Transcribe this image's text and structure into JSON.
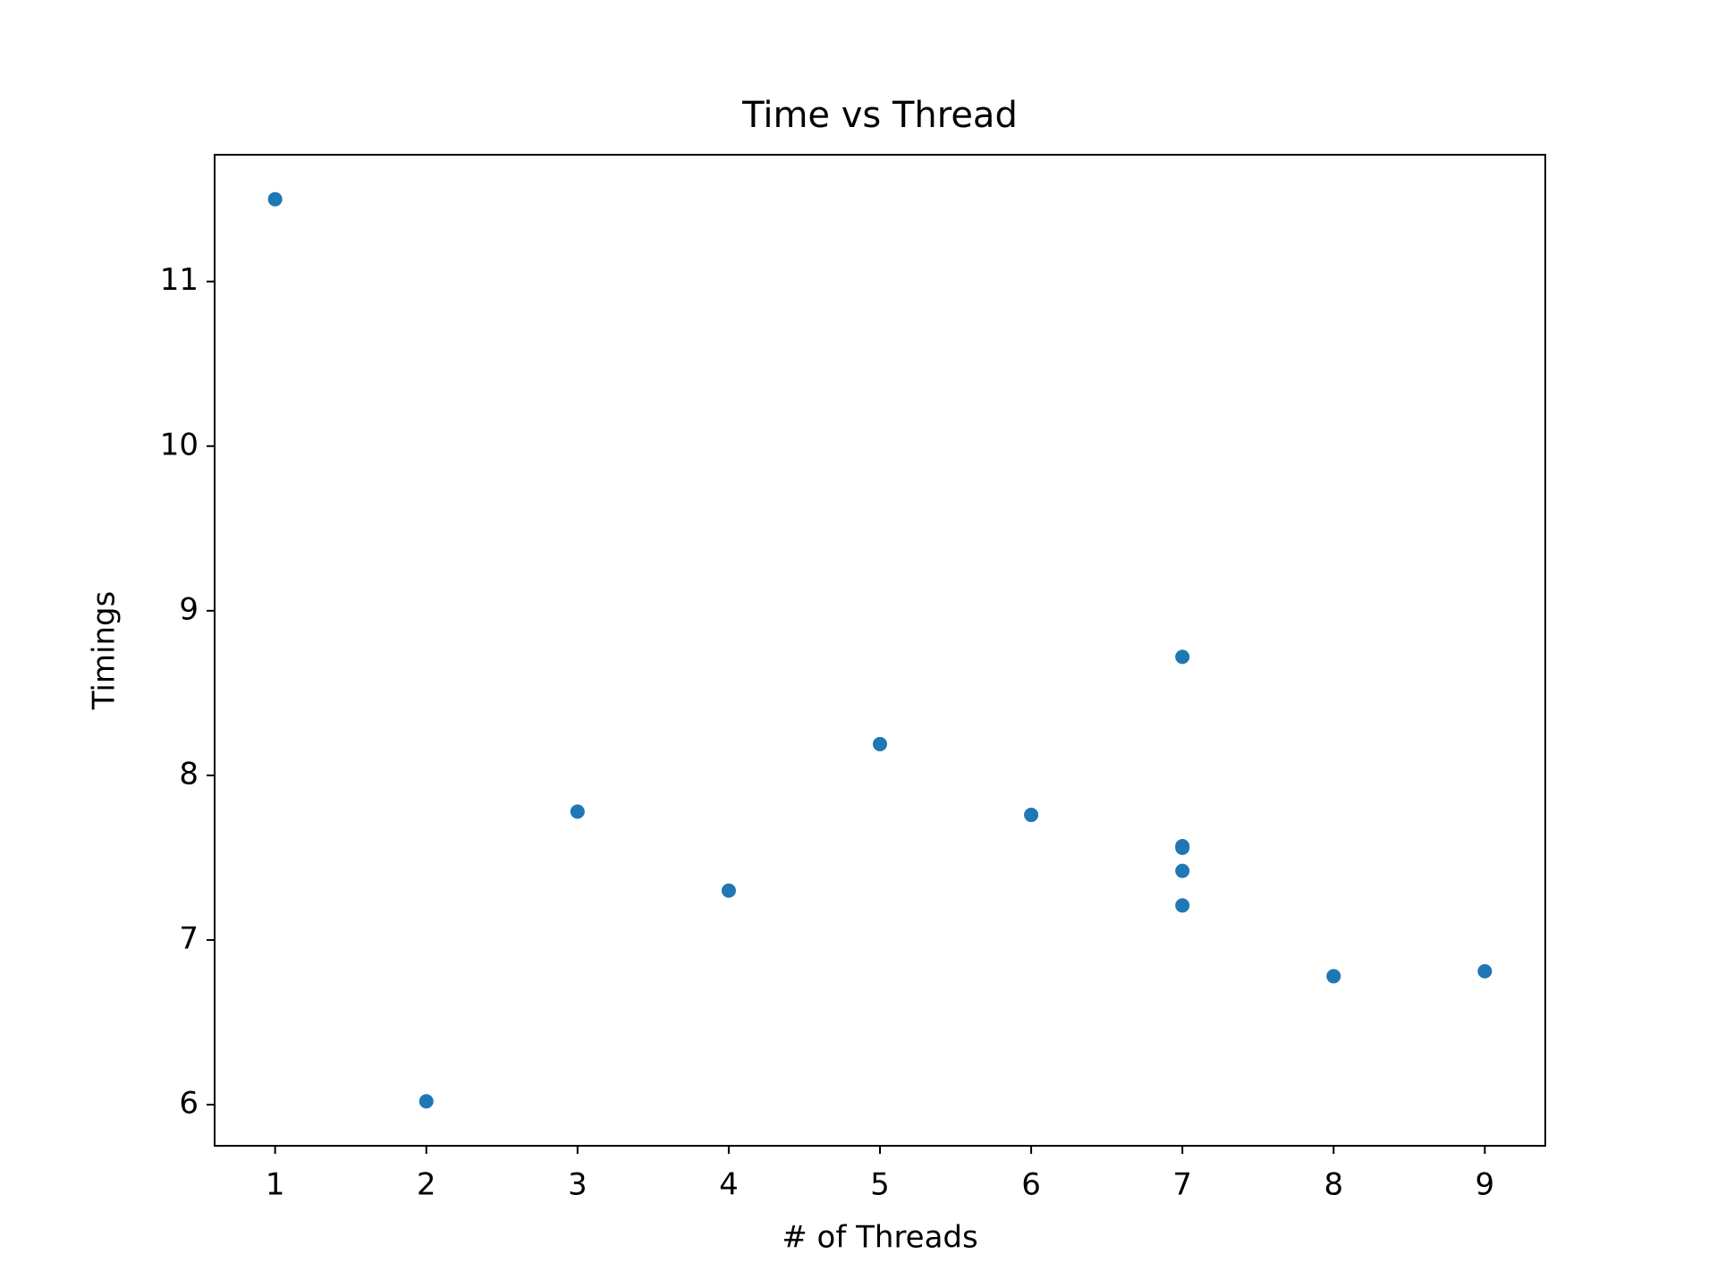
{
  "chart_data": {
    "type": "scatter",
    "title": "Time vs Thread",
    "x_label": "# of Threads",
    "y_label": "Timings",
    "x": [
      1,
      2,
      3,
      4,
      5,
      6,
      7,
      7,
      7,
      7,
      7,
      8,
      9
    ],
    "y": [
      11.5,
      6.02,
      7.78,
      7.3,
      8.19,
      7.76,
      8.72,
      7.57,
      7.56,
      7.42,
      7.21,
      6.78,
      6.81
    ],
    "color": "#1f77b4",
    "xlim": [
      0.6,
      9.4
    ],
    "xticks": [
      1,
      2,
      3,
      4,
      5,
      6,
      7,
      8,
      9
    ],
    "ylim": [
      5.75,
      11.77
    ],
    "yticks": [
      6,
      7,
      8,
      9,
      10,
      11
    ],
    "grid": false
  }
}
